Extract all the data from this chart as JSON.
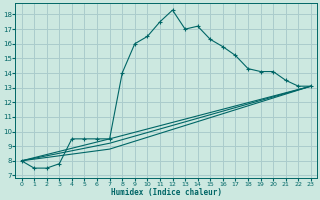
{
  "xlabel": "Humidex (Indice chaleur)",
  "background_color": "#cce8e0",
  "grid_color": "#aacccc",
  "line_color": "#006666",
  "xlim": [
    -0.5,
    23.5
  ],
  "ylim": [
    6.8,
    18.8
  ],
  "yticks": [
    7,
    8,
    9,
    10,
    11,
    12,
    13,
    14,
    15,
    16,
    17,
    18
  ],
  "xticks": [
    0,
    1,
    2,
    3,
    4,
    5,
    6,
    7,
    8,
    9,
    10,
    11,
    12,
    13,
    14,
    15,
    16,
    17,
    18,
    19,
    20,
    21,
    22,
    23
  ],
  "main_series": {
    "x": [
      0,
      1,
      2,
      3,
      4,
      5,
      6,
      7,
      8,
      9,
      10,
      11,
      12,
      13,
      14,
      15,
      16,
      17,
      18,
      19,
      20,
      21,
      22,
      23
    ],
    "y": [
      8.0,
      7.5,
      7.5,
      7.8,
      9.5,
      9.5,
      9.5,
      9.5,
      14.0,
      16.0,
      16.5,
      17.5,
      18.3,
      17.0,
      17.2,
      16.3,
      15.8,
      15.2,
      14.3,
      14.1,
      14.1,
      13.5,
      13.1,
      13.1
    ]
  },
  "reg_lines": [
    {
      "x": [
        0,
        7,
        23
      ],
      "y": [
        8.0,
        9.5,
        13.1
      ]
    },
    {
      "x": [
        0,
        7,
        23
      ],
      "y": [
        8.0,
        9.2,
        13.1
      ]
    },
    {
      "x": [
        0,
        7,
        23
      ],
      "y": [
        8.0,
        8.8,
        13.1
      ]
    }
  ]
}
